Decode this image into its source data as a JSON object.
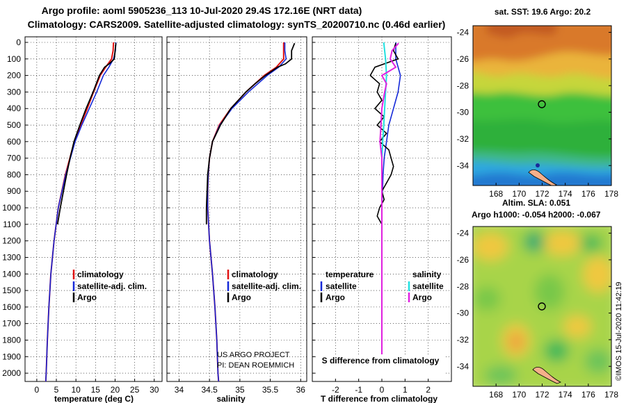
{
  "header": {
    "line1": "Argo profile: aoml 5905236_113 10-Jul-2020 29.4S 172.16E (NRT data)",
    "line2": "Climatology: CARS2009. Satellite-adjusted climatology: synTS_20200710.nc (0.46d earlier)"
  },
  "colors": {
    "climatology": "#e01010",
    "satellite": "#1428d8",
    "argo": "#000000",
    "sat_salinity": "#20e0e0",
    "argo_salinity": "#e020e0"
  },
  "chart_data": [
    {
      "type": "line",
      "id": "temperature",
      "xlabel": "temperature (deg C)",
      "ylabel": "",
      "xlim": [
        -3,
        32
      ],
      "ylim": [
        2050,
        0
      ],
      "xticks": [
        "0",
        "5",
        "10",
        "15",
        "20",
        "25",
        "30"
      ],
      "yticks": [
        "0",
        "100",
        "200",
        "300",
        "400",
        "500",
        "600",
        "700",
        "800",
        "900",
        "1000",
        "1100",
        "1200",
        "1300",
        "1400",
        "1500",
        "1600",
        "1700",
        "1800",
        "1900",
        "2000"
      ],
      "legend": [
        "climatology",
        "satellite-adj. clim.",
        "Argo"
      ],
      "series": [
        {
          "name": "climatology",
          "depth": [
            0,
            50,
            100,
            150,
            200,
            300,
            400,
            500,
            600,
            800,
            1000,
            1200,
            1400,
            1600,
            1800,
            2000,
            2050
          ],
          "values": [
            19.6,
            19.5,
            19.1,
            17.6,
            16.2,
            14.5,
            12.9,
            11.2,
            9.6,
            7.3,
            5.5,
            4.4,
            3.6,
            3.1,
            2.7,
            2.4,
            2.3
          ]
        },
        {
          "name": "satellite-adj. clim.",
          "depth": [
            0,
            50,
            100,
            150,
            200,
            300,
            400,
            500,
            600,
            800,
            1000,
            1200,
            1400,
            1600,
            1800,
            2000,
            2050
          ],
          "values": [
            20.2,
            20.1,
            19.6,
            18.4,
            17.0,
            15.3,
            13.4,
            11.5,
            9.8,
            7.4,
            5.5,
            4.4,
            3.6,
            3.1,
            2.7,
            2.4,
            2.3
          ]
        },
        {
          "name": "Argo",
          "depth": [
            5,
            50,
            100,
            130,
            150,
            200,
            300,
            400,
            500,
            600,
            700,
            800,
            900,
            1000,
            1100
          ],
          "values": [
            20.2,
            20.0,
            19.8,
            18.5,
            17.3,
            16.0,
            14.4,
            12.6,
            11.0,
            9.5,
            8.5,
            7.6,
            6.8,
            6.0,
            5.3
          ]
        }
      ]
    },
    {
      "type": "line",
      "id": "salinity",
      "xlabel": "salinity",
      "ylabel": "",
      "xlim": [
        33.8,
        36.1
      ],
      "ylim": [
        2050,
        0
      ],
      "xticks": [
        "34",
        "34.5",
        "35",
        "35.5",
        "36"
      ],
      "legend": [
        "climatology",
        "satellite-adj. clim.",
        "Argo"
      ],
      "note_line1": "US ARGO PROJECT",
      "note_line2": "PI: DEAN ROEMMICH",
      "series": [
        {
          "name": "climatology",
          "depth": [
            0,
            50,
            100,
            150,
            200,
            300,
            400,
            500,
            600,
            700,
            800,
            900,
            1000,
            1200,
            1400,
            1600,
            1800,
            2000,
            2050
          ],
          "values": [
            35.72,
            35.72,
            35.72,
            35.6,
            35.4,
            35.1,
            34.85,
            34.66,
            34.55,
            34.5,
            34.48,
            34.47,
            34.47,
            34.5,
            34.55,
            34.59,
            34.62,
            34.64,
            34.65
          ]
        },
        {
          "name": "satellite-adj. clim.",
          "depth": [
            0,
            50,
            100,
            150,
            200,
            300,
            400,
            500,
            600,
            700,
            800,
            900,
            1000,
            1200,
            1400,
            1600,
            1800,
            2000,
            2050
          ],
          "values": [
            35.74,
            35.74,
            35.76,
            35.64,
            35.45,
            35.14,
            34.87,
            34.67,
            34.55,
            34.5,
            34.48,
            34.47,
            34.47,
            34.5,
            34.55,
            34.59,
            34.62,
            34.64,
            34.65
          ]
        },
        {
          "name": "Argo",
          "depth": [
            5,
            50,
            100,
            130,
            150,
            200,
            250,
            300,
            400,
            500,
            600,
            700,
            800,
            900,
            1000,
            1100
          ],
          "values": [
            35.9,
            35.85,
            35.85,
            35.75,
            35.62,
            35.42,
            35.25,
            35.1,
            34.85,
            34.68,
            34.55,
            34.5,
            34.47,
            34.46,
            34.45,
            34.45
          ]
        }
      ]
    },
    {
      "type": "line",
      "id": "differences",
      "xlabel": "T difference from climatology",
      "xlabel_top": "S difference from climatology",
      "xlim": [
        -3,
        3
      ],
      "ylim": [
        2050,
        0
      ],
      "xticks": [
        "-2",
        "-1",
        "0",
        "1",
        "2"
      ],
      "xticks_top": [
        "-0.5",
        "-0.25",
        "0",
        "0.25",
        "0.5"
      ],
      "legend_left": [
        "temperature",
        "satellite",
        "Argo"
      ],
      "legend_right": [
        "salinity",
        "satellite",
        "Argo"
      ],
      "series": [
        {
          "name": "T satellite",
          "depth": [
            0,
            100,
            200,
            300,
            400,
            500,
            600,
            700,
            800,
            1000,
            1200,
            1400,
            1600,
            1800,
            2000
          ],
          "values": [
            0.6,
            0.6,
            0.8,
            0.7,
            0.5,
            0.3,
            0.2,
            0.1,
            0.05,
            0.0,
            0.0,
            0.0,
            0.0,
            0.0,
            0.0
          ]
        },
        {
          "name": "T Argo",
          "depth": [
            5,
            50,
            100,
            150,
            200,
            250,
            300,
            350,
            400,
            450,
            500,
            550,
            600,
            650,
            700,
            750,
            800,
            850,
            900,
            950,
            1000,
            1050,
            1100
          ],
          "values": [
            0.6,
            0.5,
            0.7,
            -0.3,
            -0.5,
            -0.1,
            -0.2,
            0.0,
            -0.3,
            0.1,
            -0.2,
            0.2,
            -0.1,
            0.3,
            0.4,
            0.5,
            0.4,
            0.2,
            0.0,
            0.1,
            -0.1,
            -0.2,
            0.0
          ]
        },
        {
          "name": "S satellite",
          "depth": [
            0,
            100,
            200,
            300,
            400,
            500,
            600,
            700,
            800,
            1000,
            1200,
            1400,
            1600,
            1800,
            2000
          ],
          "values": [
            0.02,
            0.04,
            0.05,
            0.04,
            0.03,
            0.02,
            0.01,
            0.0,
            0.0,
            0.0,
            0.0,
            0.0,
            0.0,
            0.0,
            0.0
          ]
        },
        {
          "name": "S Argo",
          "depth": [
            5,
            50,
            100,
            150,
            200,
            250,
            300,
            400,
            500,
            600,
            700,
            800,
            1000,
            1200,
            1400,
            1600,
            1800,
            2000
          ],
          "values": [
            0.18,
            0.11,
            0.09,
            0.15,
            0.0,
            0.05,
            0.03,
            0.0,
            -0.01,
            -0.02,
            0.0,
            0.0,
            0.0,
            0.0,
            0.0,
            0.0,
            0.0,
            0.0
          ]
        }
      ]
    },
    {
      "type": "heatmap",
      "id": "sst-map",
      "title": "sat. SST: 19.6 Argo: 20.2",
      "xticks": [
        "168",
        "170",
        "172",
        "174",
        "176",
        "178"
      ],
      "yticks": [
        "-24",
        "-26",
        "-28",
        "-30",
        "-32",
        "-34"
      ],
      "xlim": [
        166,
        178
      ],
      "ylim": [
        -35.5,
        -23.5
      ],
      "marker": {
        "lon": 172.16,
        "lat": -29.4
      }
    },
    {
      "type": "heatmap",
      "id": "sla-map",
      "title": "Altim. SLA: 0.051",
      "title2": "Argo h1000: -0.054 h2000: -0.067",
      "xticks": [
        "168",
        "170",
        "172",
        "174",
        "176",
        "178"
      ],
      "yticks": [
        "-24",
        "-26",
        "-28",
        "-30",
        "-32",
        "-34"
      ],
      "xlim": [
        166,
        178
      ],
      "ylim": [
        -35.5,
        -23.5
      ],
      "marker": {
        "lon": 172.16,
        "lat": -29.4
      }
    }
  ],
  "watermark": "©IMOS 15-Jul-2020 11:42:19"
}
